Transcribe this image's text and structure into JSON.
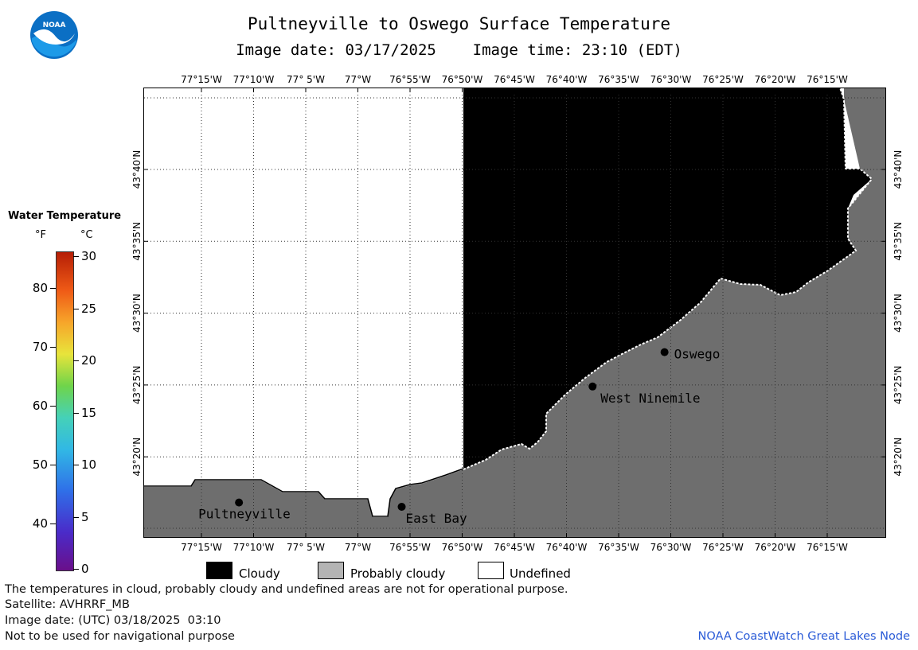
{
  "header": {
    "title": "Pultneyville to Oswego Surface Temperature",
    "image_date_label": "Image date: 03/17/2025",
    "image_time_label": "Image time: 23:10 (EDT)"
  },
  "logo": {
    "text": "NOAA"
  },
  "map": {
    "lon_ticks": [
      "77°15'W",
      "77°10'W",
      "77° 5'W",
      "77°W",
      "76°55'W",
      "76°50'W",
      "76°45'W",
      "76°40'W",
      "76°35'W",
      "76°30'W",
      "76°25'W",
      "76°20'W",
      "76°15'W"
    ],
    "lat_ticks": [
      "43°40'N",
      "43°35'N",
      "43°30'N",
      "43°25'N",
      "43°20'N"
    ],
    "places": [
      {
        "name": "Pultneyville",
        "lon": -77.19,
        "lat": 43.28
      },
      {
        "name": "East Bay",
        "lon": -76.93,
        "lat": 43.275
      },
      {
        "name": "West Ninemile",
        "lon": -76.625,
        "lat": 43.415
      },
      {
        "name": "Oswego",
        "lon": -76.51,
        "lat": 43.455
      }
    ],
    "colors": {
      "cloudy": "#000000",
      "probably_cloudy": "#6e6e6e",
      "undefined": "#ffffff"
    }
  },
  "legend": {
    "title": "Water Temperature",
    "unit_f": "°F",
    "unit_c": "°C",
    "f_ticks": [
      "80",
      "70",
      "60",
      "50",
      "40"
    ],
    "c_ticks": [
      "30",
      "25",
      "20",
      "15",
      "10",
      "5",
      "0"
    ]
  },
  "key": {
    "cloudy": "Cloudy",
    "probably_cloudy": "Probably cloudy",
    "undefined": "Undefined"
  },
  "footer": {
    "disclaimer": "The temperatures in cloud, probably cloudy and undefined areas are not for operational purpose.",
    "satellite": "Satellite: AVHRRF_MB",
    "utc_date": "Image date: (UTC) 03/18/2025  03:10",
    "nav_warning": "Not to be used for navigational purpose",
    "credit": "NOAA CoastWatch Great Lakes Node"
  }
}
